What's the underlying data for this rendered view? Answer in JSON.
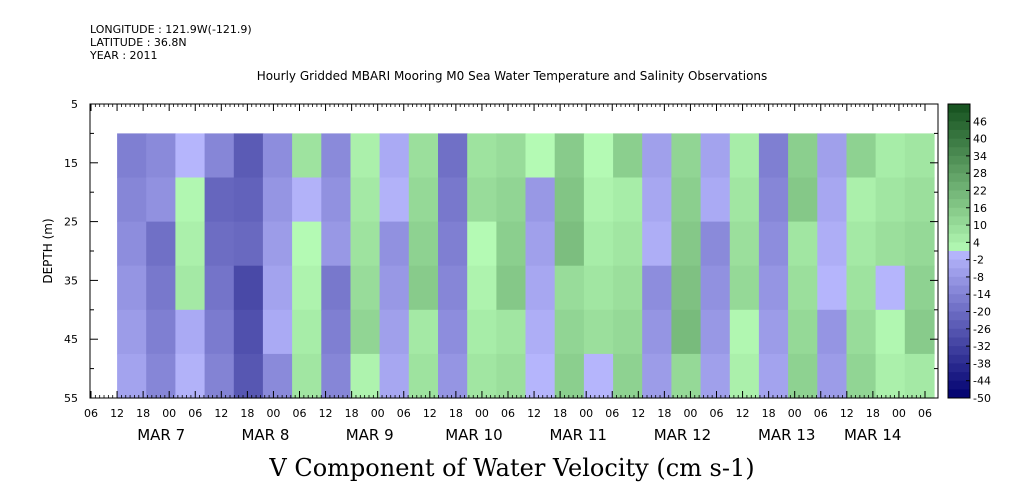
{
  "header": {
    "longitude": "LONGITUDE : 121.9W(-121.9)",
    "latitude": "LATITUDE : 36.8N",
    "year": "YEAR : 2011"
  },
  "chart_data": {
    "type": "heatmap",
    "title": "Hourly Gridded MBARI Mooring M0 Sea Water Temperature and Salinity Observations",
    "xlabel": "",
    "ylabel": "DEPTH (m)",
    "bottom_title": "V Component of Water Velocity (cm s-1)",
    "ylim": [
      55,
      5
    ],
    "y_ticks": [
      5,
      15,
      25,
      35,
      45,
      55
    ],
    "data_depth_range": [
      10,
      55
    ],
    "x_hour_ticks": [
      "06",
      "12",
      "18",
      "00",
      "06",
      "12",
      "18",
      "00",
      "06",
      "12",
      "18",
      "00",
      "06",
      "12",
      "18",
      "00",
      "06",
      "12",
      "18",
      "00",
      "06",
      "12",
      "18",
      "00",
      "06",
      "12",
      "18",
      "00",
      "06",
      "12",
      "18",
      "00",
      "06"
    ],
    "x_day_labels": [
      "MAR 7",
      "MAR 8",
      "MAR 9",
      "MAR 10",
      "MAR 11",
      "MAR 12",
      "MAR 13",
      "MAR 14"
    ],
    "colorbar_labels": [
      "46",
      "40",
      "34",
      "28",
      "22",
      "16",
      "10",
      "4",
      "-2",
      "-8",
      "-14",
      "-20",
      "-26",
      "-32",
      "-38",
      "-44",
      "-50"
    ],
    "colorbar_range": [
      -50,
      52
    ],
    "series_bands": [
      {
        "day": "MAR 7 12:00",
        "v": -10
      },
      {
        "day": "MAR 7 18:00",
        "v": -14
      },
      {
        "day": "MAR 8 00:00",
        "v": 2
      },
      {
        "day": "MAR 8 06:00",
        "v": -18
      },
      {
        "day": "MAR 8 12:00",
        "v": -26
      },
      {
        "day": "MAR 8 18:00",
        "v": -8
      },
      {
        "day": "MAR 9 00:00",
        "v": 4
      },
      {
        "day": "MAR 9 06:00",
        "v": -12
      },
      {
        "day": "MAR 9 12:00",
        "v": 8
      },
      {
        "day": "MAR 9 18:00",
        "v": -6
      },
      {
        "day": "MAR 10 00:00",
        "v": 10
      },
      {
        "day": "MAR 10 06:00",
        "v": -14
      },
      {
        "day": "MAR 10 12:00",
        "v": 6
      },
      {
        "day": "MAR 10 18:00",
        "v": 12
      },
      {
        "day": "MAR 11 00:00",
        "v": -4
      },
      {
        "day": "MAR 11 06:00",
        "v": 14
      },
      {
        "day": "MAR 11 12:00",
        "v": 4
      },
      {
        "day": "MAR 11 18:00",
        "v": 10
      },
      {
        "day": "MAR 12 00:00",
        "v": -6
      },
      {
        "day": "MAR 12 06:00",
        "v": 16
      },
      {
        "day": "MAR 12 12:00",
        "v": -8
      },
      {
        "day": "MAR 12 18:00",
        "v": 6
      },
      {
        "day": "MAR 13 00:00",
        "v": -10
      },
      {
        "day": "MAR 13 06:00",
        "v": 12
      },
      {
        "day": "MAR 13 12:00",
        "v": -4
      },
      {
        "day": "MAR 13 18:00",
        "v": 8
      },
      {
        "day": "MAR 14 00:00",
        "v": 4
      },
      {
        "day": "MAR 14 06:00",
        "v": 10
      }
    ]
  }
}
